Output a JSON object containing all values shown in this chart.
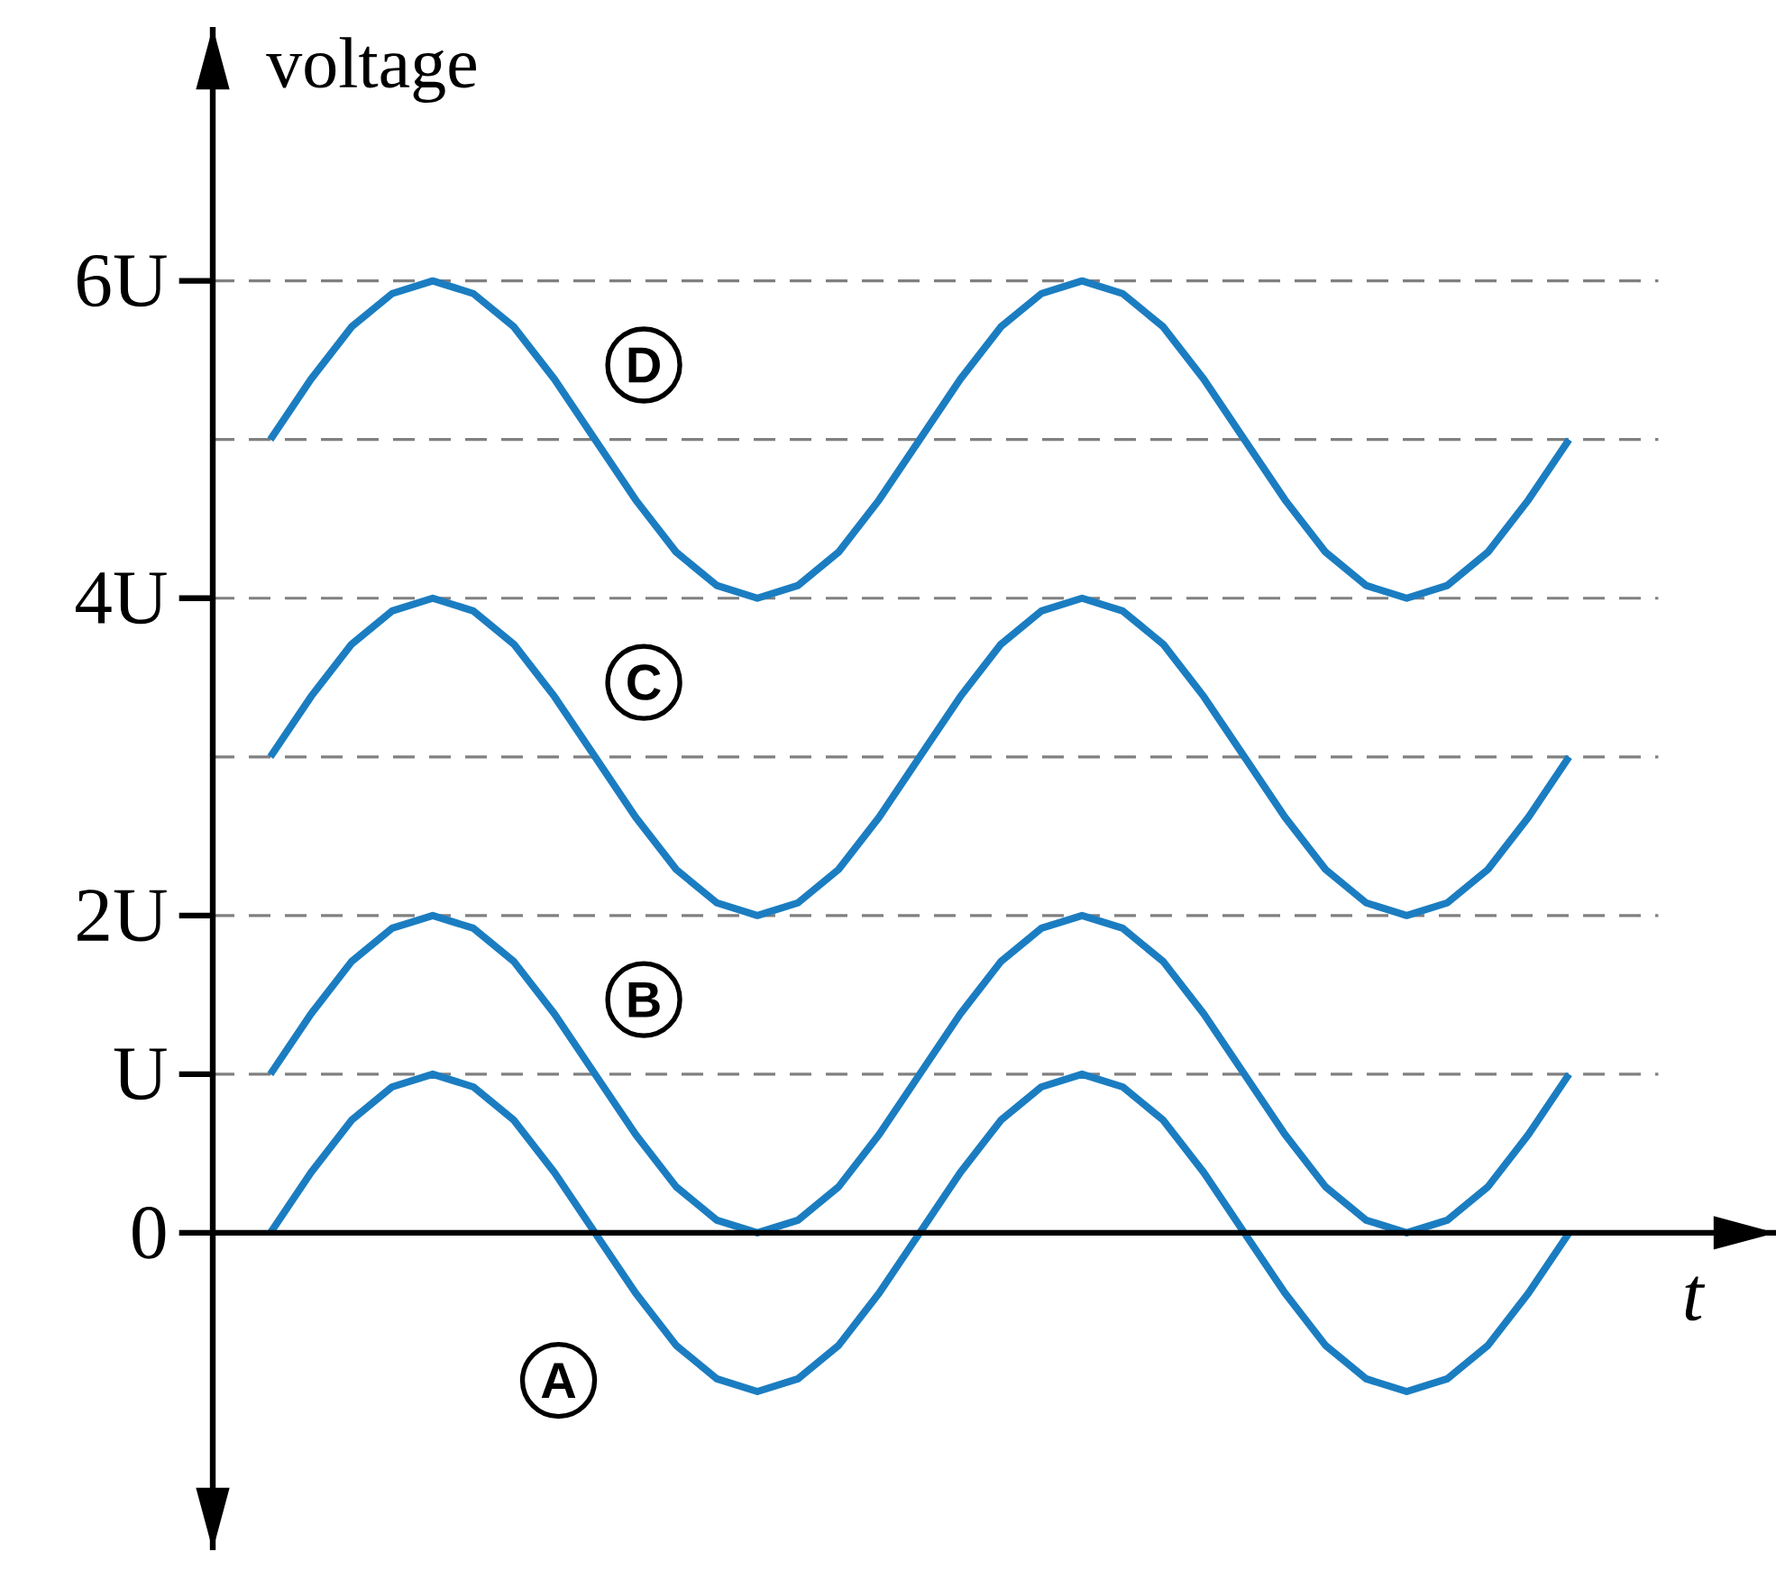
{
  "chart_data": {
    "type": "line",
    "xlabel": "t",
    "ylabel": "voltage",
    "categories": [
      null,
      null,
      null,
      null,
      null,
      null,
      null,
      null,
      null,
      null,
      null,
      null,
      null,
      null,
      null,
      null,
      null,
      null,
      null,
      null,
      null,
      null,
      null,
      null,
      null,
      null,
      null,
      null,
      null,
      null,
      null,
      null,
      null
    ],
    "series": [
      {
        "name": "A",
        "color": "#1b7dc1",
        "values": [
          0,
          0.38,
          0.71,
          0.92,
          1,
          0.92,
          0.71,
          0.38,
          0,
          -0.38,
          -0.71,
          -0.92,
          -1,
          -0.92,
          -0.71,
          -0.38,
          0,
          0.38,
          0.71,
          0.92,
          1,
          0.92,
          0.71,
          0.38,
          0,
          -0.38,
          -0.71,
          -0.92,
          -1,
          -0.92,
          -0.71,
          -0.38,
          0
        ]
      },
      {
        "name": "B",
        "color": "#1b7dc1",
        "values": [
          1,
          1.38,
          1.71,
          1.92,
          2,
          1.92,
          1.71,
          1.38,
          1,
          0.62,
          0.29,
          0.08,
          0,
          0.08,
          0.29,
          0.62,
          1,
          1.38,
          1.71,
          1.92,
          2,
          1.92,
          1.71,
          1.38,
          1,
          0.62,
          0.29,
          0.08,
          0,
          0.08,
          0.29,
          0.62,
          1
        ]
      },
      {
        "name": "C",
        "color": "#1b7dc1",
        "values": [
          3,
          3.38,
          3.71,
          3.92,
          4,
          3.92,
          3.71,
          3.38,
          3,
          2.62,
          2.29,
          2.08,
          2,
          2.08,
          2.29,
          2.62,
          3,
          3.38,
          3.71,
          3.92,
          4,
          3.92,
          3.71,
          3.38,
          3,
          2.62,
          2.29,
          2.08,
          2,
          2.08,
          2.29,
          2.62,
          3
        ]
      },
      {
        "name": "D",
        "color": "#1b7dc1",
        "values": [
          5,
          5.38,
          5.71,
          5.92,
          6,
          5.92,
          5.71,
          5.38,
          5,
          4.62,
          4.29,
          4.08,
          4,
          4.08,
          4.29,
          4.62,
          5,
          5.38,
          5.71,
          5.92,
          6,
          5.92,
          5.71,
          5.38,
          5,
          4.62,
          4.29,
          4.08,
          4,
          4.08,
          4.29,
          4.62,
          5
        ]
      }
    ],
    "ylim": [
      -2,
      7.6
    ],
    "yticks": [
      {
        "value": 0,
        "label": "0"
      },
      {
        "value": 1,
        "label": "U"
      },
      {
        "value": 2,
        "label": "2U"
      },
      {
        "value": 4,
        "label": "4U"
      },
      {
        "value": 6,
        "label": "6U"
      }
    ],
    "ref_lines": [
      {
        "axis": "y",
        "value": 1,
        "color": "#808080",
        "line_style": "dashed"
      },
      {
        "axis": "y",
        "value": 2,
        "color": "#808080",
        "line_style": "dashed"
      },
      {
        "axis": "y",
        "value": 3,
        "color": "#808080",
        "line_style": "dashed"
      },
      {
        "axis": "y",
        "value": 4,
        "color": "#808080",
        "line_style": "dashed"
      },
      {
        "axis": "y",
        "value": 5,
        "color": "#808080",
        "line_style": "dashed"
      },
      {
        "axis": "y",
        "value": 6,
        "color": "#808080",
        "line_style": "dashed"
      }
    ],
    "marker": "none",
    "line_style": "solid"
  }
}
